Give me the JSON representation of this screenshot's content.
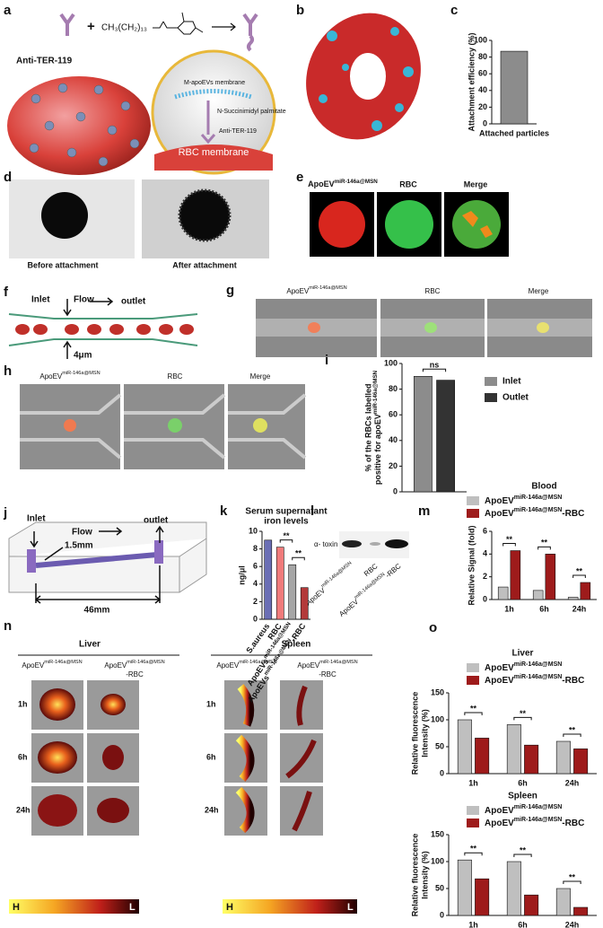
{
  "panel_letters": [
    "a",
    "b",
    "c",
    "d",
    "e",
    "f",
    "g",
    "h",
    "i",
    "j",
    "k",
    "l",
    "m",
    "n",
    "o"
  ],
  "panels": {
    "a": {
      "antibody": "Anti-TER-119",
      "plus": "+",
      "reagent": "CH₃(CH₂)₁₃",
      "inset": [
        "M-apoEVs membrane",
        "N-Succinimidyl palmitate",
        "Anti-TER-119",
        "RBC membrane"
      ]
    },
    "d": {
      "captions": [
        "Before attachment",
        "After attachment"
      ]
    },
    "e": {
      "headers": [
        {
          "text": "ApoEV",
          "sup": "miR-146a@MSN"
        },
        "RBC",
        "Merge"
      ]
    },
    "f": {
      "labels": [
        "Inlet",
        "Flow",
        "outlet",
        "4μm"
      ]
    },
    "g": {
      "headers": [
        {
          "text": "ApoEV",
          "sup": "miR-146a@MSN"
        },
        "RBC",
        "Merge"
      ]
    },
    "h": {
      "headers": [
        {
          "text": "ApoEV",
          "sup": "miR-146a@MSN"
        },
        "RBC",
        "Merge"
      ]
    },
    "j": {
      "labels": [
        "Inlet",
        "Flow",
        "outlet",
        "1.5mm",
        "46mm"
      ]
    },
    "l": {
      "band": "α- toxin",
      "lanes": [
        {
          "text": "ApoEV",
          "sup": "miR-146a@MSN"
        },
        "RBC",
        {
          "text": "ApoEV",
          "sup": "miR-146a@MSN",
          "suffix": "-RBC"
        }
      ]
    },
    "n": {
      "liver": {
        "title": "Liver",
        "columns": [
          {
            "text": "ApoEV",
            "sup": "miR-146a@MSN"
          },
          {
            "text": "ApoEV",
            "sup": "miR-146a@MSN",
            "suffix": "-RBC"
          }
        ],
        "rows": [
          "1h",
          "6h",
          "24h"
        ],
        "scale": [
          "H",
          "L"
        ]
      },
      "spleen": {
        "title": "Spleen",
        "columns": [
          {
            "text": "ApoEV",
            "sup": "miR-146a@MSN"
          },
          {
            "text": "ApoEV",
            "sup": "miR-146a@MSN",
            "suffix": "-RBC"
          }
        ],
        "rows": [
          "1h",
          "6h",
          "24h"
        ],
        "scale": [
          "H",
          "L"
        ]
      }
    }
  },
  "chart_data": [
    {
      "type": "bar",
      "ylabel": "Attachment efficiency (%)",
      "categories": [
        "Attached particles"
      ],
      "values": [
        87
      ],
      "color": "#8c8c8c",
      "ylim": [
        0,
        100
      ],
      "yticks": [
        0,
        20,
        40,
        60,
        80,
        100
      ]
    },
    {
      "type": "bar",
      "ylabel": [
        "% of the RBCs labelled",
        {
          "text": "positive for apoEV",
          "sup": "miR-146a@MSN"
        }
      ],
      "categories": [
        null
      ],
      "series": [
        {
          "name": "Inlet",
          "color": "#8c8c8c",
          "values": [
            90
          ]
        },
        {
          "name": "Outlet",
          "color": "#333333",
          "values": [
            87
          ]
        }
      ],
      "ylim": [
        0,
        100
      ],
      "yticks": [
        0,
        20,
        40,
        60,
        80,
        100
      ],
      "legend": "right",
      "annotations": [
        "ns"
      ]
    },
    {
      "type": "bar",
      "title": [
        "Serum supernatant",
        "iron levels"
      ],
      "ylabel": "ng/μl",
      "categories": [
        "S.aureus",
        "RBC",
        {
          "text": "ApoEVs",
          "sup": "miR-146a@MSN"
        },
        {
          "text": "ApoEVs",
          "sup": "miR-146a@MSN",
          "suffix": "-RBC"
        }
      ],
      "values": [
        9,
        8.2,
        6.2,
        3.6
      ],
      "colors": [
        "#6b6fb5",
        "#f07b7b",
        "#a6a6a6",
        "#b33a3a"
      ],
      "ylim": [
        0,
        10
      ],
      "yticks": [
        0,
        2,
        4,
        6,
        8,
        10
      ],
      "annotations": [
        "**",
        "**"
      ]
    },
    {
      "type": "bar",
      "title": "Blood",
      "ylabel": "Relative Signal (fold)",
      "categories": [
        "1h",
        "6h",
        "24h"
      ],
      "series": [
        {
          "name": {
            "text": "ApoEV",
            "sup": "miR-146a@MSN"
          },
          "color": "#bfbfbf",
          "values": [
            1.1,
            0.8,
            0.2
          ]
        },
        {
          "name": {
            "text": "ApoEV",
            "sup": "miR-146a@MSN",
            "suffix": "-RBC"
          },
          "color": "#9e1b1b",
          "values": [
            4.3,
            4.0,
            1.5
          ]
        }
      ],
      "ylim": [
        0,
        6
      ],
      "yticks": [
        0,
        2,
        4,
        6
      ],
      "legend": "top",
      "annotations": [
        "**",
        "**",
        "**"
      ]
    },
    {
      "type": "bar",
      "title": "Liver",
      "ylabel": [
        "Relative fluorescence",
        "Intensity (%)"
      ],
      "categories": [
        "1h",
        "6h",
        "24h"
      ],
      "series": [
        {
          "name": {
            "text": "ApoEV",
            "sup": "miR-146a@MSN"
          },
          "color": "#bfbfbf",
          "values": [
            100,
            91,
            60
          ]
        },
        {
          "name": {
            "text": "ApoEV",
            "sup": "miR-146a@MSN",
            "suffix": "-RBC"
          },
          "color": "#9e1b1b",
          "values": [
            66,
            53,
            46
          ]
        }
      ],
      "ylim": [
        0,
        150
      ],
      "yticks": [
        0,
        50,
        100,
        150
      ],
      "legend": "top",
      "annotations": [
        "**",
        "**",
        "**"
      ]
    },
    {
      "type": "bar",
      "title": "Spleen",
      "ylabel": [
        "Relative fluorescence",
        "Intensity (%)"
      ],
      "categories": [
        "1h",
        "6h",
        "24h"
      ],
      "series": [
        {
          "name": {
            "text": "ApoEV",
            "sup": "miR-146a@MSN"
          },
          "color": "#bfbfbf",
          "values": [
            103,
            100,
            50
          ]
        },
        {
          "name": {
            "text": "ApoEV",
            "sup": "miR-146a@MSN",
            "suffix": "-RBC"
          },
          "color": "#9e1b1b",
          "values": [
            68,
            38,
            15
          ]
        }
      ],
      "ylim": [
        0,
        150
      ],
      "yticks": [
        0,
        50,
        100,
        150
      ],
      "legend": "top",
      "annotations": [
        "**",
        "**",
        "**"
      ]
    }
  ]
}
